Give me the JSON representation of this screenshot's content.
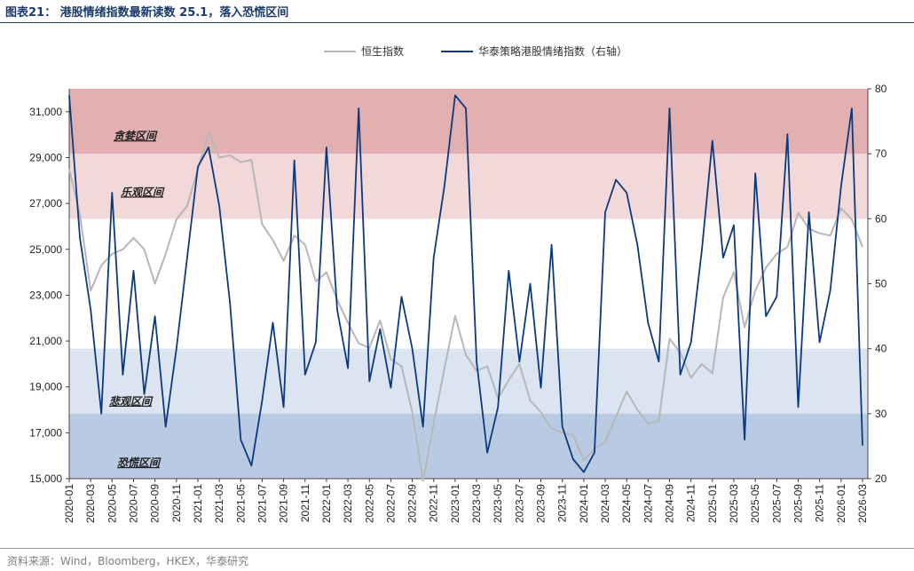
{
  "header": {
    "title": "图表21： 港股情绪指数最新读数 25.1，落入恐慌区间"
  },
  "footer": {
    "source": "资料来源：Wind，Bloomberg，HKEX，华泰研究"
  },
  "colors": {
    "hsi": "#b7b7b7",
    "sentiment": "#0b3a7e",
    "greed_zone": "#e3b0b2",
    "optimism_zone": "#f2d8d9",
    "pessimism_zone": "#dbe4f0",
    "panic_zone": "#b8cbe3",
    "axis": "#444444"
  },
  "chart_data": {
    "type": "line",
    "legend_position": "top-center",
    "x_tick_labels": [
      "2020-01",
      "2020-03",
      "2020-05",
      "2020-07",
      "2020-09",
      "2020-11",
      "2021-01",
      "2021-03",
      "2021-05",
      "2021-07",
      "2021-09",
      "2021-11",
      "2022-01",
      "2022-03",
      "2022-05",
      "2022-07",
      "2022-09",
      "2022-11",
      "2023-01",
      "2023-03",
      "2023-05",
      "2023-07",
      "2023-09",
      "2023-11",
      "2024-01",
      "2024-03",
      "2024-05",
      "2024-07",
      "2024-09",
      "2024-11",
      "2025-01",
      "2025-03",
      "2025-05",
      "2025-07",
      "2025-09",
      "2025-11",
      "2026-01",
      "2026-03"
    ],
    "left_axis": {
      "ylim": [
        15000,
        32000
      ],
      "ticks": [
        15000,
        17000,
        19000,
        21000,
        23000,
        25000,
        27000,
        29000,
        31000
      ],
      "tick_labels": [
        "15,000",
        "17,000",
        "19,000",
        "21,000",
        "23,000",
        "25,000",
        "27,000",
        "29,000",
        "31,000"
      ]
    },
    "right_axis": {
      "ylim": [
        20,
        80
      ],
      "ticks": [
        20,
        30,
        40,
        50,
        60,
        70,
        80
      ],
      "tick_labels": [
        "20",
        "30",
        "40",
        "50",
        "60",
        "70",
        "80"
      ]
    },
    "zones": [
      {
        "label": "贪婪区间",
        "from": 70,
        "to": 80,
        "axis": "right",
        "color_key": "greed_zone"
      },
      {
        "label": "乐观区间",
        "from": 60,
        "to": 70,
        "axis": "right",
        "color_key": "optimism_zone"
      },
      {
        "label": "悲观区间",
        "from": 30,
        "to": 40,
        "axis": "right",
        "color_key": "pessimism_zone"
      },
      {
        "label": "恐慌区间",
        "from": 20,
        "to": 30,
        "axis": "right",
        "color_key": "panic_zone"
      }
    ],
    "series": [
      {
        "name": "恒生指数",
        "axis": "left",
        "color_key": "hsi",
        "x": [
          "2020-01",
          "2020-02",
          "2020-03",
          "2020-04",
          "2020-05",
          "2020-06",
          "2020-07",
          "2020-08",
          "2020-09",
          "2020-10",
          "2020-11",
          "2020-12",
          "2021-01",
          "2021-02",
          "2021-03",
          "2021-04",
          "2021-05",
          "2021-06",
          "2021-07",
          "2021-08",
          "2021-09",
          "2021-10",
          "2021-11",
          "2021-12",
          "2022-01",
          "2022-02",
          "2022-03",
          "2022-04",
          "2022-05",
          "2022-06",
          "2022-07",
          "2022-08",
          "2022-09",
          "2022-10",
          "2022-11",
          "2022-12",
          "2023-01",
          "2023-02",
          "2023-03",
          "2023-04",
          "2023-05",
          "2023-06",
          "2023-07",
          "2023-08",
          "2023-09",
          "2023-10",
          "2023-11",
          "2023-12",
          "2024-01",
          "2024-02",
          "2024-03",
          "2024-04",
          "2024-05",
          "2024-06",
          "2024-07",
          "2024-08",
          "2024-09",
          "2024-10",
          "2024-11",
          "2024-12",
          "2025-01",
          "2025-02",
          "2025-03",
          "2025-04",
          "2025-05",
          "2025-06",
          "2025-07",
          "2025-08",
          "2025-09",
          "2025-10",
          "2025-11",
          "2025-12",
          "2026-01",
          "2026-02",
          "2026-03"
        ],
        "values": [
          28500,
          26500,
          23200,
          24300,
          24800,
          25000,
          25500,
          25000,
          23500,
          24800,
          26300,
          26900,
          28500,
          30100,
          29000,
          29100,
          28800,
          28900,
          26100,
          25400,
          24500,
          25600,
          25200,
          23600,
          24000,
          22800,
          21800,
          20900,
          20700,
          21900,
          20200,
          19900,
          17900,
          14900,
          17400,
          19800,
          22100,
          20400,
          19700,
          19900,
          18500,
          19300,
          20000,
          18400,
          17900,
          17200,
          17000,
          16900,
          15800,
          16300,
          16600,
          17700,
          18800,
          18000,
          17400,
          17500,
          21100,
          20500,
          19400,
          20000,
          19600,
          22900,
          24000,
          21600,
          23200,
          24200,
          24800,
          25100,
          26600,
          25900,
          25700,
          25600,
          26800,
          26300,
          25100
        ]
      },
      {
        "name": "华泰策略港股情绪指数（右轴）",
        "axis": "right",
        "color_key": "sentiment",
        "x": [
          "2020-01",
          "2020-02",
          "2020-03",
          "2020-04",
          "2020-05",
          "2020-06",
          "2020-07",
          "2020-08",
          "2020-09",
          "2020-10",
          "2020-11",
          "2020-12",
          "2021-01",
          "2021-02",
          "2021-03",
          "2021-04",
          "2021-05",
          "2021-06",
          "2021-07",
          "2021-08",
          "2021-09",
          "2021-10",
          "2021-11",
          "2021-12",
          "2022-01",
          "2022-02",
          "2022-03",
          "2022-04",
          "2022-05",
          "2022-06",
          "2022-07",
          "2022-08",
          "2022-09",
          "2022-10",
          "2022-11",
          "2022-12",
          "2023-01",
          "2023-02",
          "2023-03",
          "2023-04",
          "2023-05",
          "2023-06",
          "2023-07",
          "2023-08",
          "2023-09",
          "2023-10",
          "2023-11",
          "2023-12",
          "2024-01",
          "2024-02",
          "2024-03",
          "2024-04",
          "2024-05",
          "2024-06",
          "2024-07",
          "2024-08",
          "2024-09",
          "2024-10",
          "2024-11",
          "2024-12",
          "2025-01",
          "2025-02",
          "2025-03",
          "2025-04",
          "2025-05",
          "2025-06",
          "2025-07",
          "2025-08",
          "2025-09",
          "2025-10",
          "2025-11",
          "2025-12",
          "2026-01",
          "2026-02",
          "2026-03"
        ],
        "values": [
          79,
          57,
          46,
          30,
          64,
          36,
          52,
          33,
          45,
          28,
          40,
          54,
          68,
          71,
          62,
          47,
          26,
          22,
          32,
          44,
          31,
          69,
          36,
          41,
          71,
          46,
          37,
          77,
          35,
          43,
          34,
          48,
          40,
          28,
          54,
          65,
          79,
          77,
          38,
          24,
          31,
          52,
          38,
          50,
          34,
          56,
          28,
          23,
          21,
          24,
          61,
          66,
          64,
          56,
          44,
          38,
          77,
          36,
          41,
          55,
          72,
          54,
          59,
          26,
          67,
          45,
          48,
          73,
          31,
          61,
          41,
          49,
          65,
          77,
          25.1
        ]
      }
    ]
  }
}
